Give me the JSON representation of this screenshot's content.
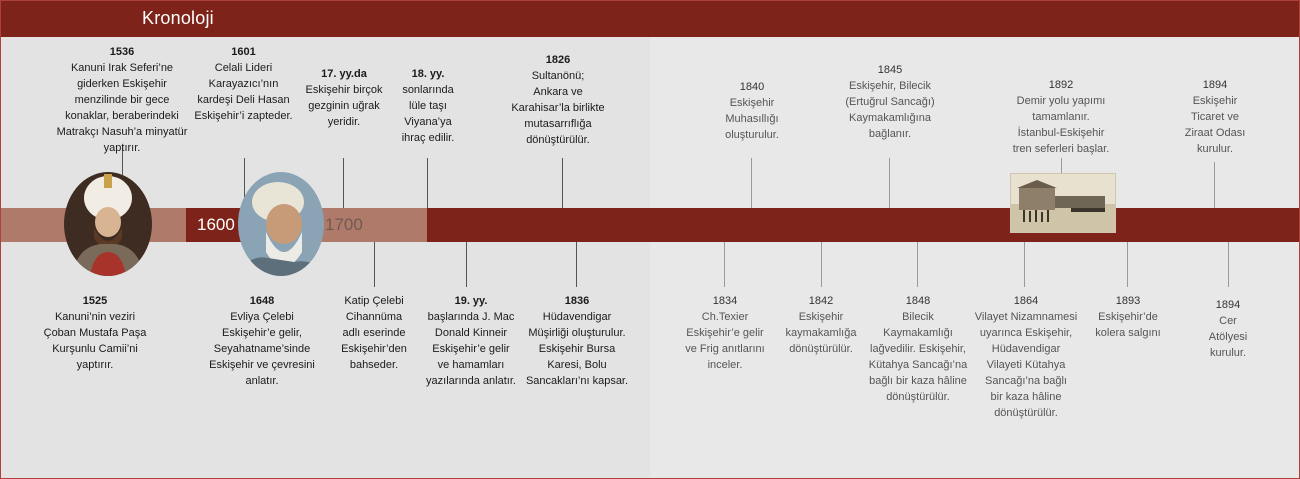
{
  "header": {
    "title": "Kronoloji"
  },
  "colors": {
    "accent": "#7d231a",
    "band_light": "#b07a6a",
    "background": "#e4e3e3"
  },
  "timeline": {
    "century_1600": "1600",
    "century_1700": "1700"
  },
  "events_top": [
    {
      "year": "1536",
      "text": "Kanuni Irak Seferi’ne\ngiderken Eskişehir\nmenzilinde bir gece\nkonaklar, beraberindeki\nMatrakçı Nasuh’a minyatür\nyaptırır."
    },
    {
      "year": "1601",
      "text": "Celali Lideri\nKarayazıcı’nın\nkardeşi Deli Hasan\nEskişehir’i zapteder."
    },
    {
      "year": "17. yy.da",
      "text": "Eskişehir birçok\ngezginin uğrak\nyeridir."
    },
    {
      "year": "18. yy.",
      "text": "sonlarında\nlüle taşı\nViyana’ya\nihraç edilir."
    },
    {
      "year": "1826",
      "text": "Sultanönü;\nAnkara ve\nKarahisar’la birlikte\nmutasarrıflığa\ndönüştürülür."
    },
    {
      "year": "1840",
      "text": "Eskişehir\nMuhasıllığı\noluşturulur."
    },
    {
      "year": "1845",
      "text": "Eskişehir, Bilecik\n(Ertuğrul Sancağı)\nKaymakamlığına\nbağlanır."
    },
    {
      "year": "1892",
      "text": "Demir yolu yapımı\ntamamlanır.\nİstanbul-Eskişehir\ntren seferleri başlar."
    },
    {
      "year": "1894",
      "text": "Eskişehir\nTicaret ve\nZiraat Odası\nkurulur."
    }
  ],
  "events_bottom": [
    {
      "year": "1525",
      "text": "Kanuni’nin veziri\nÇoban Mustafa Paşa\nKurşunlu Camii’ni\nyaptırır."
    },
    {
      "year": "1648",
      "text": "Evliya Çelebi\nEskişehir’e gelir,\nSeyahatname’sinde\nEskişehir ve  çevresini\nanlatır."
    },
    {
      "year": "",
      "text": "Katip Çelebi\nCihannüma\nadlı eserinde\nEskişehir’den\nbahseder."
    },
    {
      "year": "19. yy.",
      "text": "başlarında J. Mac\nDonald Kinneir\nEskişehir’e gelir\nve hamamları\nyazılarında anlatır."
    },
    {
      "year": "1836",
      "text": "Hüdavendigar\nMüşirliği oluşturulur.\nEskişehir Bursa\nKaresi, Bolu\nSancakları’nı kapsar."
    },
    {
      "year": "1834",
      "text": "Ch.Texier\nEskişehir’e gelir\nve Frig anıtlarını\ninceler."
    },
    {
      "year": "1842",
      "text": "Eskişehir\nkaymakamlığa\ndönüştürülür."
    },
    {
      "year": "1848",
      "text": "Bilecik\nKaymakamlığı\nlağvedilir. Eskişehir,\nKütahya Sancağı’na\nbağlı bir kaza hâline\ndönüştürülür."
    },
    {
      "year": "1864",
      "text": "Vilayet Nizamnamesi\nuyarınca Eskişehir,\nHüdavendigar\nVilayeti Kütahya\nSancağı’na bağlı\nbir kaza hâline\ndönüştürülür."
    },
    {
      "year": "1893",
      "text": "Eskişehir’de\nkolera salgını"
    },
    {
      "year": "1894",
      "text": "Cer\nAtölyesi\nkurulur."
    }
  ]
}
